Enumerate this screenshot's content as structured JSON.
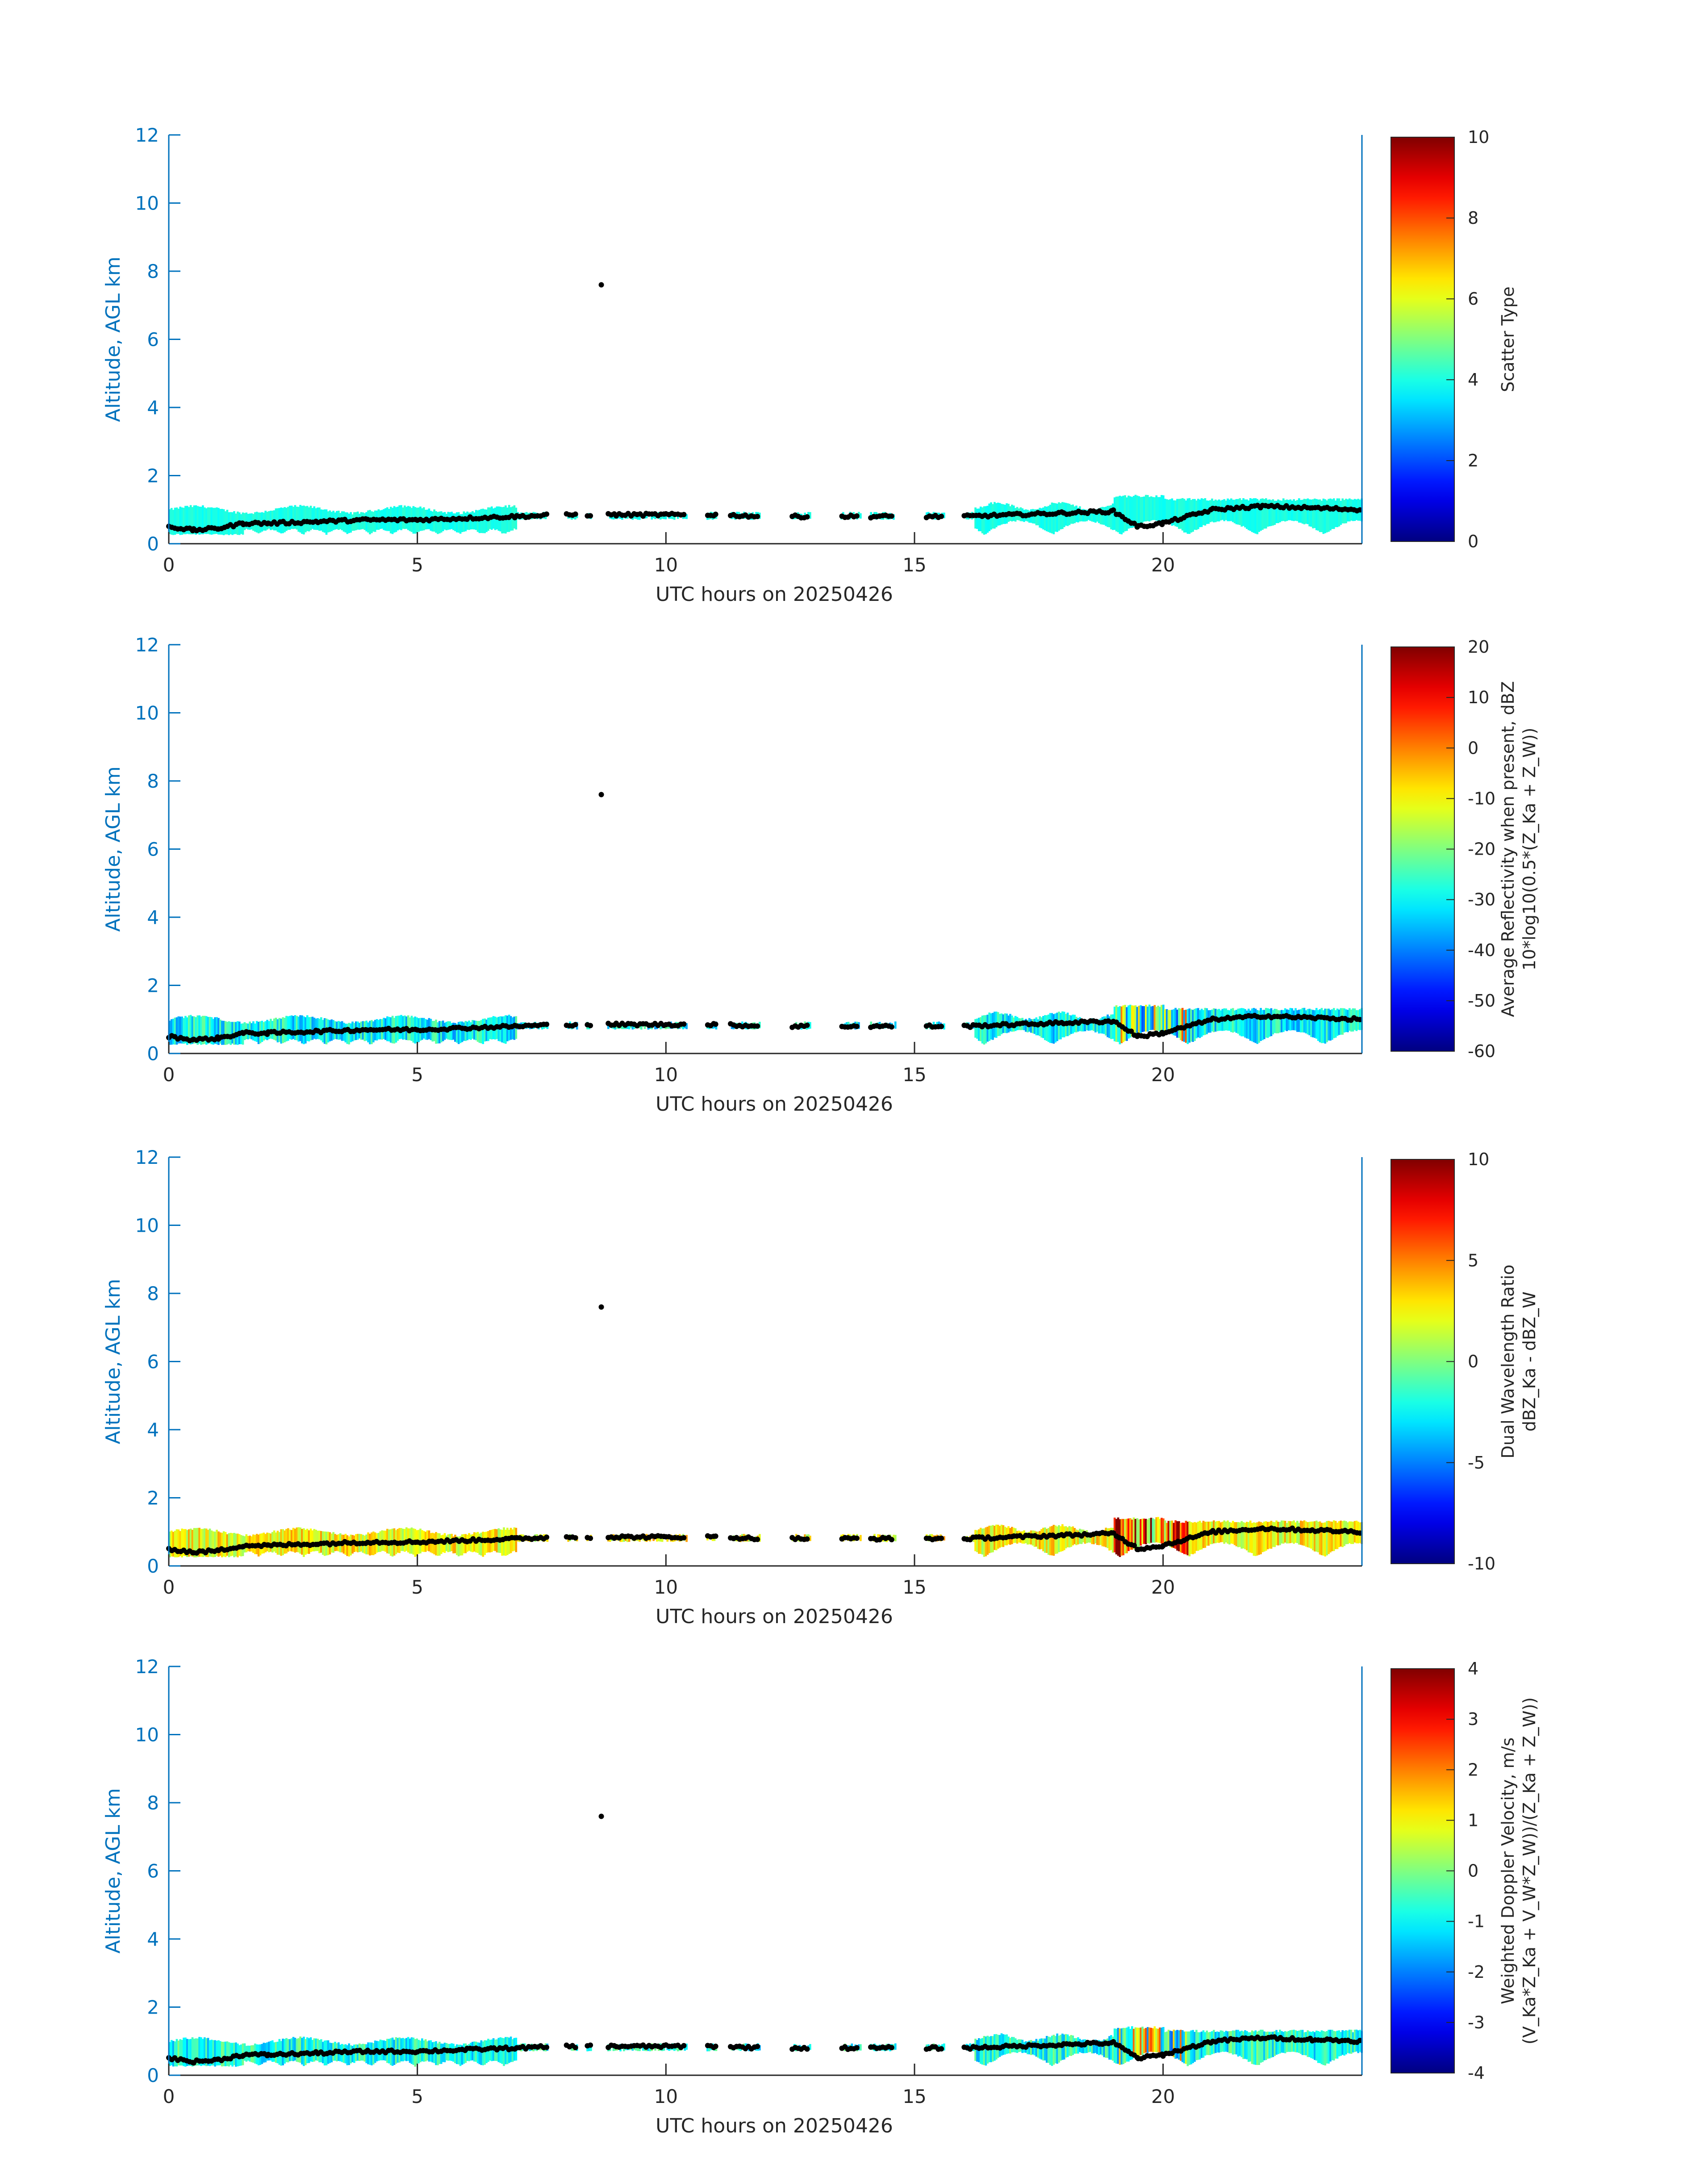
{
  "chart_data": [
    {
      "type": "heatmap",
      "xlabel": "UTC hours on 20250426",
      "ylabel": "Altitude, AGL km",
      "xlim": [
        0,
        24
      ],
      "ylim": [
        0,
        12
      ],
      "xticks": [
        0,
        5,
        10,
        15,
        20
      ],
      "yticks": [
        0,
        2,
        4,
        6,
        8,
        10,
        12
      ],
      "colorbar": {
        "label_lines": [
          "Scatter Type"
        ],
        "ticks": [
          0,
          2,
          4,
          6,
          8,
          10
        ],
        "range": [
          0,
          10
        ]
      },
      "field_description": "cloud layer ~0.3-1.3 km, mostly Scatter Type ~4 (cyan)",
      "cloud_layer": {
        "bottom_km": 0.2,
        "top_km": 1.3,
        "typical_value": 4
      },
      "cloud_base_points": {
        "x": [
          0,
          0.5,
          1,
          1.5,
          2,
          3,
          4,
          5,
          6,
          7,
          8,
          9,
          10,
          11,
          12,
          13,
          14,
          15,
          16,
          17,
          18,
          19,
          19.5,
          20,
          21,
          22,
          23,
          24
        ],
        "y": [
          0.5,
          0.4,
          0.45,
          0.6,
          0.6,
          0.65,
          0.7,
          0.7,
          0.75,
          0.8,
          0.85,
          0.85,
          0.85,
          0.85,
          0.8,
          0.8,
          0.8,
          0.8,
          0.8,
          0.85,
          0.9,
          0.95,
          0.5,
          0.6,
          1.0,
          1.1,
          1.05,
          1.0
        ]
      },
      "outlier_point": {
        "x": 8.7,
        "y": 7.6
      }
    },
    {
      "type": "heatmap",
      "xlabel": "UTC hours on 20250426",
      "ylabel": "Altitude, AGL km",
      "xlim": [
        0,
        24
      ],
      "ylim": [
        0,
        12
      ],
      "xticks": [
        0,
        5,
        10,
        15,
        20
      ],
      "yticks": [
        0,
        2,
        4,
        6,
        8,
        10,
        12
      ],
      "colorbar": {
        "label_lines": [
          "Average Reflectivity when present, dBZ",
          "10*log10(0.5*(Z_Ka + Z_W))"
        ],
        "ticks": [
          -60,
          -50,
          -40,
          -30,
          -20,
          -10,
          0,
          10,
          20
        ],
        "range": [
          -60,
          20
        ]
      },
      "cloud_layer": {
        "bottom_km": 0.2,
        "top_km": 1.3,
        "typical_value": -30
      },
      "outlier_point": {
        "x": 8.7,
        "y": 7.6
      }
    },
    {
      "type": "heatmap",
      "xlabel": "UTC hours on 20250426",
      "ylabel": "Altitude, AGL km",
      "xlim": [
        0,
        24
      ],
      "ylim": [
        0,
        12
      ],
      "xticks": [
        0,
        5,
        10,
        15,
        20
      ],
      "yticks": [
        0,
        2,
        4,
        6,
        8,
        10,
        12
      ],
      "colorbar": {
        "label_lines": [
          "Dual Wavelength Ratio",
          "dBZ_Ka - dBZ_W"
        ],
        "ticks": [
          -10,
          -5,
          0,
          5,
          10
        ],
        "range": [
          -10,
          10
        ]
      },
      "cloud_layer": {
        "bottom_km": 0.2,
        "top_km": 1.3,
        "typical_value": 2.5
      },
      "outlier_point": {
        "x": 8.7,
        "y": 7.6
      }
    },
    {
      "type": "heatmap",
      "xlabel": "UTC hours on 20250426",
      "ylabel": "Altitude, AGL km",
      "xlim": [
        0,
        24
      ],
      "ylim": [
        0,
        12
      ],
      "xticks": [
        0,
        5,
        10,
        15,
        20
      ],
      "yticks": [
        0,
        2,
        4,
        6,
        8,
        10,
        12
      ],
      "colorbar": {
        "label_lines": [
          "Weighted Doppler Velocity, m/s",
          "(V_Ka*Z_Ka + V_W*Z_W))/(Z_Ka + Z_W))"
        ],
        "ticks": [
          -4,
          -3,
          -2,
          -1,
          0,
          1,
          2,
          3,
          4
        ],
        "range": [
          -4,
          4
        ]
      },
      "cloud_layer": {
        "bottom_km": 0.2,
        "top_km": 1.3,
        "typical_value": -0.8
      },
      "outlier_point": {
        "x": 8.7,
        "y": 7.6
      }
    }
  ],
  "colors": {
    "axis_blue": "#0072BD",
    "axis_dark": "#262626",
    "marker": "#000000"
  }
}
